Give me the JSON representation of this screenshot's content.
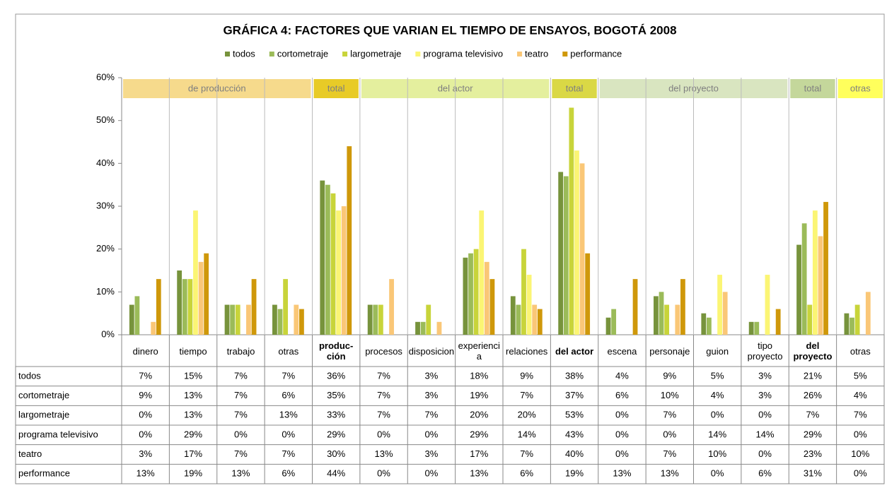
{
  "chart_data": {
    "type": "bar",
    "title": "GRÁFICA 4: FACTORES QUE VARIAN EL TIEMPO DE ENSAYOS, BOGOTÁ 2008",
    "categories": [
      "dinero",
      "tiempo",
      "trabajo",
      "otras",
      "produc-ción",
      "procesos",
      "disposicion",
      "experiencia",
      "relaciones",
      "del actor",
      "escena",
      "personaje",
      "guion",
      "tipo proyecto",
      "del proyecto",
      "otras"
    ],
    "groups": [
      {
        "label": "de producción",
        "span": 4,
        "color": "#f6da8c",
        "bold": false
      },
      {
        "label": "total",
        "span": 1,
        "color": "#e8cb27",
        "bold": true
      },
      {
        "label": "del actor",
        "span": 4,
        "color": "#e4ef9e",
        "bold": false
      },
      {
        "label": "total",
        "span": 1,
        "color": "#dad845",
        "bold": true
      },
      {
        "label": "del proyecto",
        "span": 4,
        "color": "#d9e5c0",
        "bold": false
      },
      {
        "label": "total",
        "span": 1,
        "color": "#c4d79b",
        "bold": true
      },
      {
        "label": "otras",
        "span": 1,
        "color": "#ffff5c",
        "bold": false
      }
    ],
    "series": [
      {
        "name": "todos",
        "color": "#77933c",
        "values": [
          7,
          15,
          7,
          7,
          36,
          7,
          3,
          18,
          9,
          38,
          4,
          9,
          5,
          3,
          21,
          5
        ],
        "value_labels": [
          "7%",
          "15%",
          "7%",
          "7%",
          "36%",
          "7%",
          "3%",
          "18%",
          "9%",
          "38%",
          "4%",
          "9%",
          "5%",
          "3%",
          "21%",
          "5%"
        ]
      },
      {
        "name": "cortometraje",
        "color": "#9bbb59",
        "values": [
          9,
          13,
          7,
          6,
          35,
          7,
          3,
          19,
          7,
          37,
          6,
          10,
          4,
          3,
          26,
          4
        ],
        "value_labels": [
          "9%",
          "13%",
          "7%",
          "6%",
          "35%",
          "7%",
          "3%",
          "19%",
          "7%",
          "37%",
          "6%",
          "10%",
          "4%",
          "3%",
          "26%",
          "4%"
        ]
      },
      {
        "name": "largometraje",
        "color": "#c8d43a",
        "values": [
          0,
          13,
          7,
          13,
          33,
          7,
          7,
          20,
          20,
          53,
          0,
          7,
          0,
          0,
          7,
          7
        ],
        "value_labels": [
          "0%",
          "13%",
          "7%",
          "13%",
          "33%",
          "7%",
          "7%",
          "20%",
          "20%",
          "53%",
          "0%",
          "7%",
          "0%",
          "0%",
          "7%",
          "7%"
        ]
      },
      {
        "name": "programa televisivo",
        "color": "#fbf574",
        "values": [
          0,
          29,
          0,
          0,
          29,
          0,
          0,
          29,
          14,
          43,
          0,
          0,
          14,
          14,
          29,
          0
        ],
        "value_labels": [
          "0%",
          "29%",
          "0%",
          "0%",
          "29%",
          "0%",
          "0%",
          "29%",
          "14%",
          "43%",
          "0%",
          "0%",
          "14%",
          "14%",
          "29%",
          "0%"
        ]
      },
      {
        "name": "teatro",
        "color": "#fac777",
        "values": [
          3,
          17,
          7,
          7,
          30,
          13,
          3,
          17,
          7,
          40,
          0,
          7,
          10,
          0,
          23,
          10
        ],
        "value_labels": [
          "3%",
          "17%",
          "7%",
          "7%",
          "30%",
          "13%",
          "3%",
          "17%",
          "7%",
          "40%",
          "0%",
          "7%",
          "10%",
          "0%",
          "23%",
          "10%"
        ]
      },
      {
        "name": "performance",
        "color": "#cf980a",
        "values": [
          13,
          19,
          13,
          6,
          44,
          0,
          0,
          13,
          6,
          19,
          13,
          13,
          0,
          6,
          31,
          0
        ],
        "value_labels": [
          "13%",
          "19%",
          "13%",
          "6%",
          "44%",
          "0%",
          "0%",
          "13%",
          "6%",
          "19%",
          "13%",
          "13%",
          "0%",
          "6%",
          "31%",
          "0%"
        ]
      }
    ],
    "ylim": [
      0,
      60
    ],
    "yticks": [
      {
        "value": 0,
        "label": "0%"
      },
      {
        "value": 10,
        "label": "10%"
      },
      {
        "value": 20,
        "label": "20%"
      },
      {
        "value": 30,
        "label": "30%"
      },
      {
        "value": 40,
        "label": "40%"
      },
      {
        "value": 50,
        "label": "50%"
      },
      {
        "value": 60,
        "label": "60%"
      }
    ],
    "grid": false,
    "legend": "top"
  }
}
